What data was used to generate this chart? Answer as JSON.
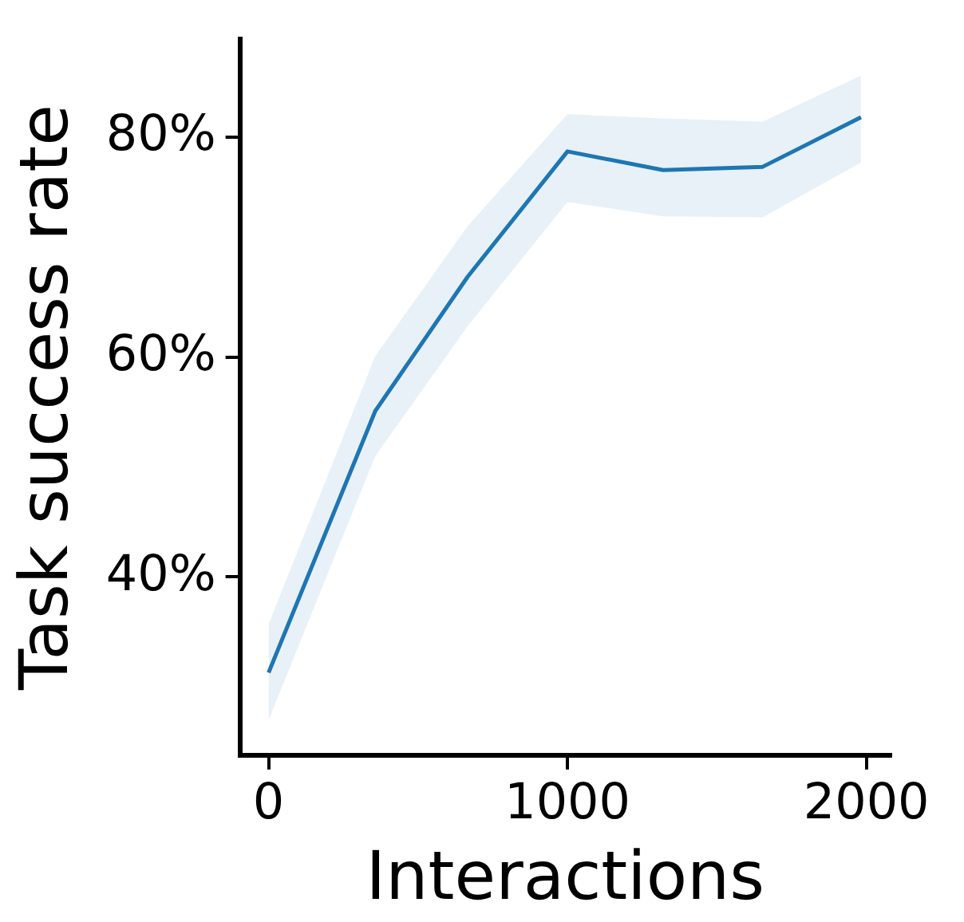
{
  "chart_data": {
    "type": "line",
    "xlabel": "Interactions",
    "ylabel": "Task success rate",
    "x": [
      0,
      357,
      666,
      1000,
      1320,
      1653,
      1982
    ],
    "series": [
      {
        "color": "#1f77b4",
        "values": [
          31.3,
          55.1,
          67.3,
          78.7,
          77.0,
          77.3,
          81.8
        ],
        "lower": [
          27.0,
          51.0,
          62.8,
          74.1,
          72.8,
          72.7,
          77.7
        ],
        "upper": [
          35.7,
          60.1,
          71.9,
          82.1,
          81.7,
          81.4,
          85.6
        ]
      }
    ],
    "xlim": [
      -96,
      2081
    ],
    "xticks": [
      0,
      1000,
      2000
    ],
    "ylim": [
      23.8,
      88.9
    ],
    "yticks": [
      {
        "value": 40,
        "label": "40%"
      },
      {
        "value": 60,
        "label": "60%"
      },
      {
        "value": 80,
        "label": "80%"
      }
    ],
    "marker": "none",
    "line_style": "solid"
  }
}
